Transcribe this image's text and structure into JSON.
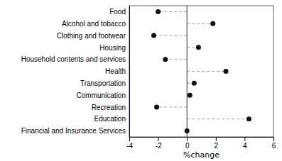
{
  "chart_data": {
    "type": "lollipop",
    "orientation": "horizontal",
    "categories": [
      "Financial and Insurance Services",
      "Education",
      "Recreation",
      "Communication",
      "Transportation",
      "Health",
      "Household contents and services",
      "Housing",
      "Clothing and footwear",
      "Alcohol and tobacco",
      "Food"
    ],
    "values": [
      0.0,
      4.3,
      -2.1,
      0.2,
      0.5,
      2.7,
      -1.5,
      0.8,
      -2.3,
      1.8,
      -2.0
    ],
    "xlabel": "%change",
    "xlim": [
      -4,
      6
    ],
    "xticks": [
      -4,
      -2,
      0,
      2,
      4,
      6
    ],
    "color": "#111111",
    "grid": false
  }
}
